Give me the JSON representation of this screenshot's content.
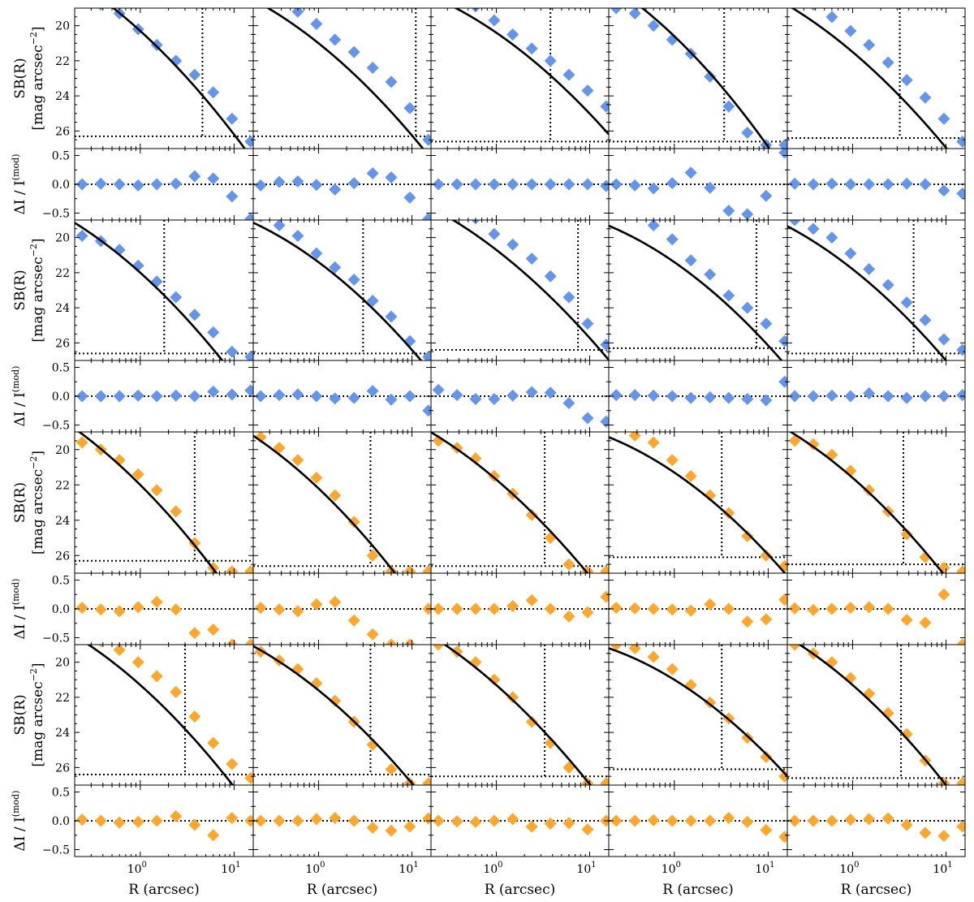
{
  "chart_data": {
    "type": "scatter",
    "layout": {
      "rows_of_panels": 4,
      "cols": 5,
      "xscale": "log",
      "xlim": [
        0.2,
        16
      ],
      "sb_ylim": [
        27,
        19
      ],
      "res_ylim": [
        -0.62,
        0.62
      ]
    },
    "axis_labels": {
      "x": "R (arcsec)",
      "sb_line1": "SB(R)",
      "sb_line2": "[mag arcsec",
      "sb_exp": "−2",
      "sb_close": "]",
      "res_main": "ΔI / I",
      "res_sup": "(mod)"
    },
    "x_ticks": [
      {
        "value": 1,
        "mantissa": "10",
        "exponent": "0"
      },
      {
        "value": 10,
        "mantissa": "10",
        "exponent": "1"
      }
    ],
    "sb_ticks": [
      {
        "value": 20,
        "label": "20"
      },
      {
        "value": 22,
        "label": "22"
      },
      {
        "value": 24,
        "label": "24"
      },
      {
        "value": 26,
        "label": "26"
      }
    ],
    "res_ticks": [
      {
        "value": 0.5,
        "label": "0.5"
      },
      {
        "value": 0.0,
        "label": "0.0"
      },
      {
        "value": -0.5,
        "label": "−0.5"
      }
    ],
    "colors": {
      "blue": "#6495ED",
      "orange": "#FFA62B",
      "model": "#000000"
    },
    "r_points": [
      0.24,
      0.38,
      0.6,
      0.95,
      1.5,
      2.4,
      3.8,
      6.0,
      9.5,
      15.0
    ],
    "groups": [
      {
        "color": "blue",
        "galaxies": [
          {
            "model": {
              "a": 20.3,
              "b": 4.85,
              "c": 1.05
            },
            "vline": 4.6,
            "hline": 26.3,
            "sb": [
              18.5,
              18.8,
              19.3,
              20.2,
              21.1,
              22.0,
              22.8,
              23.8,
              25.3,
              26.6
            ],
            "res": [
              0.0,
              0.01,
              0.0,
              -0.02,
              0.0,
              0.01,
              0.14,
              0.1,
              -0.21,
              -0.6
            ]
          },
          {
            "model": {
              "a": 21.0,
              "b": 4.25,
              "c": 1.0
            },
            "vline": 11.0,
            "hline": 26.3,
            "sb": [
              18.3,
              18.7,
              19.2,
              19.9,
              20.8,
              21.5,
              22.4,
              23.2,
              24.7,
              26.5
            ],
            "res": [
              -0.02,
              0.04,
              0.05,
              -0.01,
              -0.09,
              0.02,
              0.19,
              0.12,
              -0.23,
              -0.6
            ]
          },
          {
            "model": {
              "a": 20.4,
              "b": 3.65,
              "c": 0.96
            },
            "vline": 3.8,
            "hline": 26.6,
            "sb": [
              18.3,
              18.6,
              18.9,
              19.7,
              20.5,
              21.3,
              22.0,
              22.8,
              23.7,
              24.6
            ],
            "res": [
              0.0,
              0.0,
              0.0,
              0.0,
              0.0,
              0.0,
              0.0,
              0.0,
              0.0,
              -0.03
            ]
          },
          {
            "model": {
              "a": 20.6,
              "b": 5.1,
              "c": 1.2
            },
            "vline": 3.4,
            "hline": 26.6,
            "sb": [
              19.0,
              19.3,
              20.0,
              20.8,
              21.6,
              22.9,
              24.6,
              26.1,
              26.8,
              26.8
            ],
            "res": [
              0.0,
              -0.02,
              -0.07,
              0.02,
              0.2,
              -0.06,
              -0.46,
              -0.52,
              -0.2,
              0.55
            ]
          },
          {
            "model": {
              "a": 21.5,
              "b": 4.5,
              "c": 0.95
            },
            "vline": 3.2,
            "hline": 26.4,
            "sb": [
              18.4,
              18.8,
              19.5,
              20.3,
              21.1,
              22.1,
              23.1,
              24.1,
              25.3,
              26.6
            ],
            "res": [
              0.01,
              0.0,
              0.01,
              0.0,
              0.0,
              0.0,
              0.01,
              0.0,
              -0.11,
              -0.16
            ]
          }
        ]
      },
      {
        "color": "blue",
        "galaxies": [
          {
            "model": {
              "a": 22.0,
              "b": 4.8,
              "c": 1.05
            },
            "vline": 1.8,
            "hline": 26.6,
            "sb": [
              19.9,
              20.2,
              20.7,
              21.6,
              22.5,
              23.4,
              24.4,
              25.4,
              26.5,
              26.8
            ],
            "res": [
              0.0,
              0.0,
              0.0,
              0.01,
              0.0,
              0.01,
              0.0,
              0.08,
              0.03,
              0.1
            ]
          },
          {
            "model": {
              "a": 21.4,
              "b": 3.95,
              "c": 1.05
            },
            "vline": 3.0,
            "hline": 26.6,
            "sb": [
              18.8,
              19.3,
              19.9,
              20.9,
              21.7,
              22.4,
              23.6,
              24.5,
              25.9,
              26.8
            ],
            "res": [
              0.0,
              0.02,
              0.03,
              0.0,
              -0.04,
              -0.03,
              0.09,
              -0.06,
              0.0,
              -0.25
            ]
          },
          {
            "model": {
              "a": 20.7,
              "b": 4.1,
              "c": 0.92
            },
            "vline": 7.5,
            "hline": 26.4,
            "sb": [
              18.0,
              18.3,
              18.9,
              19.8,
              20.4,
              21.2,
              22.2,
              23.4,
              24.9,
              26.1
            ],
            "res": [
              0.11,
              0.02,
              -0.05,
              -0.05,
              0.01,
              0.07,
              0.06,
              -0.12,
              -0.38,
              -0.44
            ]
          },
          {
            "model": {
              "a": 21.4,
              "b": 3.7,
              "c": 1.05
            },
            "vline": 7.5,
            "hline": 26.3,
            "sb": [
              18.3,
              18.6,
              19.3,
              20.1,
              21.3,
              22.1,
              23.3,
              24.0,
              24.9,
              25.9
            ],
            "res": [
              0.02,
              0.02,
              0.01,
              0.0,
              -0.03,
              -0.02,
              -0.03,
              -0.05,
              -0.07,
              0.25
            ]
          },
          {
            "model": {
              "a": 21.8,
              "b": 4.2,
              "c": 1.0
            },
            "vline": 4.5,
            "hline": 26.6,
            "sb": [
              19.0,
              19.5,
              20.0,
              20.9,
              21.8,
              22.7,
              23.7,
              24.7,
              25.8,
              26.4
            ],
            "res": [
              0.0,
              0.0,
              0.01,
              0.0,
              0.05,
              0.0,
              -0.03,
              0.0,
              0.0,
              0.02
            ]
          }
        ]
      },
      {
        "color": "orange",
        "galaxies": [
          {
            "model": {
              "a": 22.0,
              "b": 5.3,
              "c": 1.05
            },
            "vline": 3.8,
            "hline": 26.3,
            "sb": [
              19.6,
              20.0,
              20.6,
              21.4,
              22.3,
              23.5,
              25.3,
              26.7,
              26.9,
              26.9
            ],
            "res": [
              0.02,
              -0.01,
              -0.04,
              0.03,
              0.12,
              -0.01,
              -0.42,
              -0.36,
              -0.62,
              -0.62
            ]
          },
          {
            "model": {
              "a": 22.2,
              "b": 5.0,
              "c": 1.05
            },
            "vline": 3.6,
            "hline": 26.6,
            "sb": [
              19.3,
              19.9,
              20.6,
              21.6,
              22.6,
              24.1,
              26.0,
              26.9,
              26.9,
              26.9
            ],
            "res": [
              0.02,
              -0.01,
              -0.04,
              0.08,
              0.12,
              -0.2,
              -0.44,
              -0.62,
              -0.62,
              0.0
            ]
          },
          {
            "model": {
              "a": 21.7,
              "b": 4.5,
              "c": 0.95
            },
            "vline": 3.3,
            "hline": 26.6,
            "sb": [
              19.5,
              19.9,
              20.5,
              21.5,
              22.5,
              23.7,
              25.0,
              26.5,
              26.9,
              26.9
            ],
            "res": [
              0.0,
              0.0,
              0.0,
              0.0,
              0.05,
              0.15,
              0.0,
              -0.13,
              -0.06,
              0.21
            ]
          },
          {
            "model": {
              "a": 21.3,
              "b": 3.6,
              "c": 1.05
            },
            "vline": 3.2,
            "hline": 26.1,
            "sb": [
              18.8,
              19.2,
              19.6,
              20.6,
              21.5,
              22.6,
              23.6,
              24.9,
              26.0,
              26.6
            ],
            "res": [
              0.02,
              0.01,
              0.0,
              -0.01,
              -0.03,
              0.08,
              0.0,
              -0.22,
              -0.18,
              0.16
            ]
          },
          {
            "model": {
              "a": 21.6,
              "b": 4.6,
              "c": 1.02
            },
            "vline": 3.5,
            "hline": 26.5,
            "sb": [
              19.5,
              19.7,
              20.3,
              21.2,
              22.3,
              23.5,
              24.8,
              26.1,
              26.7,
              26.9
            ],
            "res": [
              0.01,
              -0.02,
              0.0,
              0.02,
              0.03,
              0.0,
              -0.19,
              -0.24,
              0.25,
              -0.62
            ]
          }
        ]
      },
      {
        "color": "orange",
        "galaxies": [
          {
            "model": {
              "a": 21.3,
              "b": 4.75,
              "c": 1.05
            },
            "vline": 3.0,
            "hline": 26.4,
            "sb": [
              18.6,
              18.8,
              19.3,
              20.0,
              20.8,
              21.7,
              23.1,
              24.6,
              25.8,
              26.6
            ],
            "res": [
              0.02,
              0.0,
              -0.03,
              -0.02,
              0.0,
              0.08,
              -0.07,
              -0.25,
              0.05,
              0.0
            ]
          },
          {
            "model": {
              "a": 21.6,
              "b": 4.3,
              "c": 1.0
            },
            "vline": 3.6,
            "hline": 26.4,
            "sb": [
              19.4,
              19.9,
              20.4,
              21.2,
              22.2,
              23.4,
              24.7,
              26.1,
              26.9,
              26.9
            ],
            "res": [
              0.0,
              0.0,
              0.0,
              0.03,
              0.05,
              0.0,
              -0.12,
              -0.17,
              -0.1,
              0.04
            ]
          },
          {
            "model": {
              "a": 21.3,
              "b": 4.7,
              "c": 0.95
            },
            "vline": 3.3,
            "hline": 26.5,
            "sb": [
              19.0,
              19.4,
              20.0,
              21.0,
              22.0,
              23.4,
              24.6,
              26.0,
              26.9,
              26.9
            ],
            "res": [
              0.0,
              -0.01,
              -0.02,
              0.0,
              0.03,
              -0.1,
              -0.05,
              -0.04,
              -0.15,
              0.0
            ]
          },
          {
            "model": {
              "a": 21.0,
              "b": 3.3,
              "c": 1.05
            },
            "vline": 3.2,
            "hline": 26.1,
            "sb": [
              19.0,
              19.2,
              19.7,
              20.4,
              21.3,
              22.3,
              23.2,
              24.3,
              25.4,
              26.5
            ],
            "res": [
              0.0,
              0.0,
              0.01,
              0.0,
              0.0,
              0.0,
              0.05,
              -0.02,
              -0.16,
              -0.28
            ]
          },
          {
            "model": {
              "a": 21.3,
              "b": 4.65,
              "c": 1.05
            },
            "vline": 3.3,
            "hline": 26.6,
            "sb": [
              19.0,
              19.5,
              20.0,
              20.9,
              21.8,
              22.9,
              24.1,
              25.6,
              26.9,
              26.9
            ],
            "res": [
              0.0,
              0.0,
              0.0,
              0.02,
              0.03,
              0.04,
              -0.07,
              -0.21,
              -0.26,
              -0.1
            ]
          }
        ]
      }
    ]
  }
}
